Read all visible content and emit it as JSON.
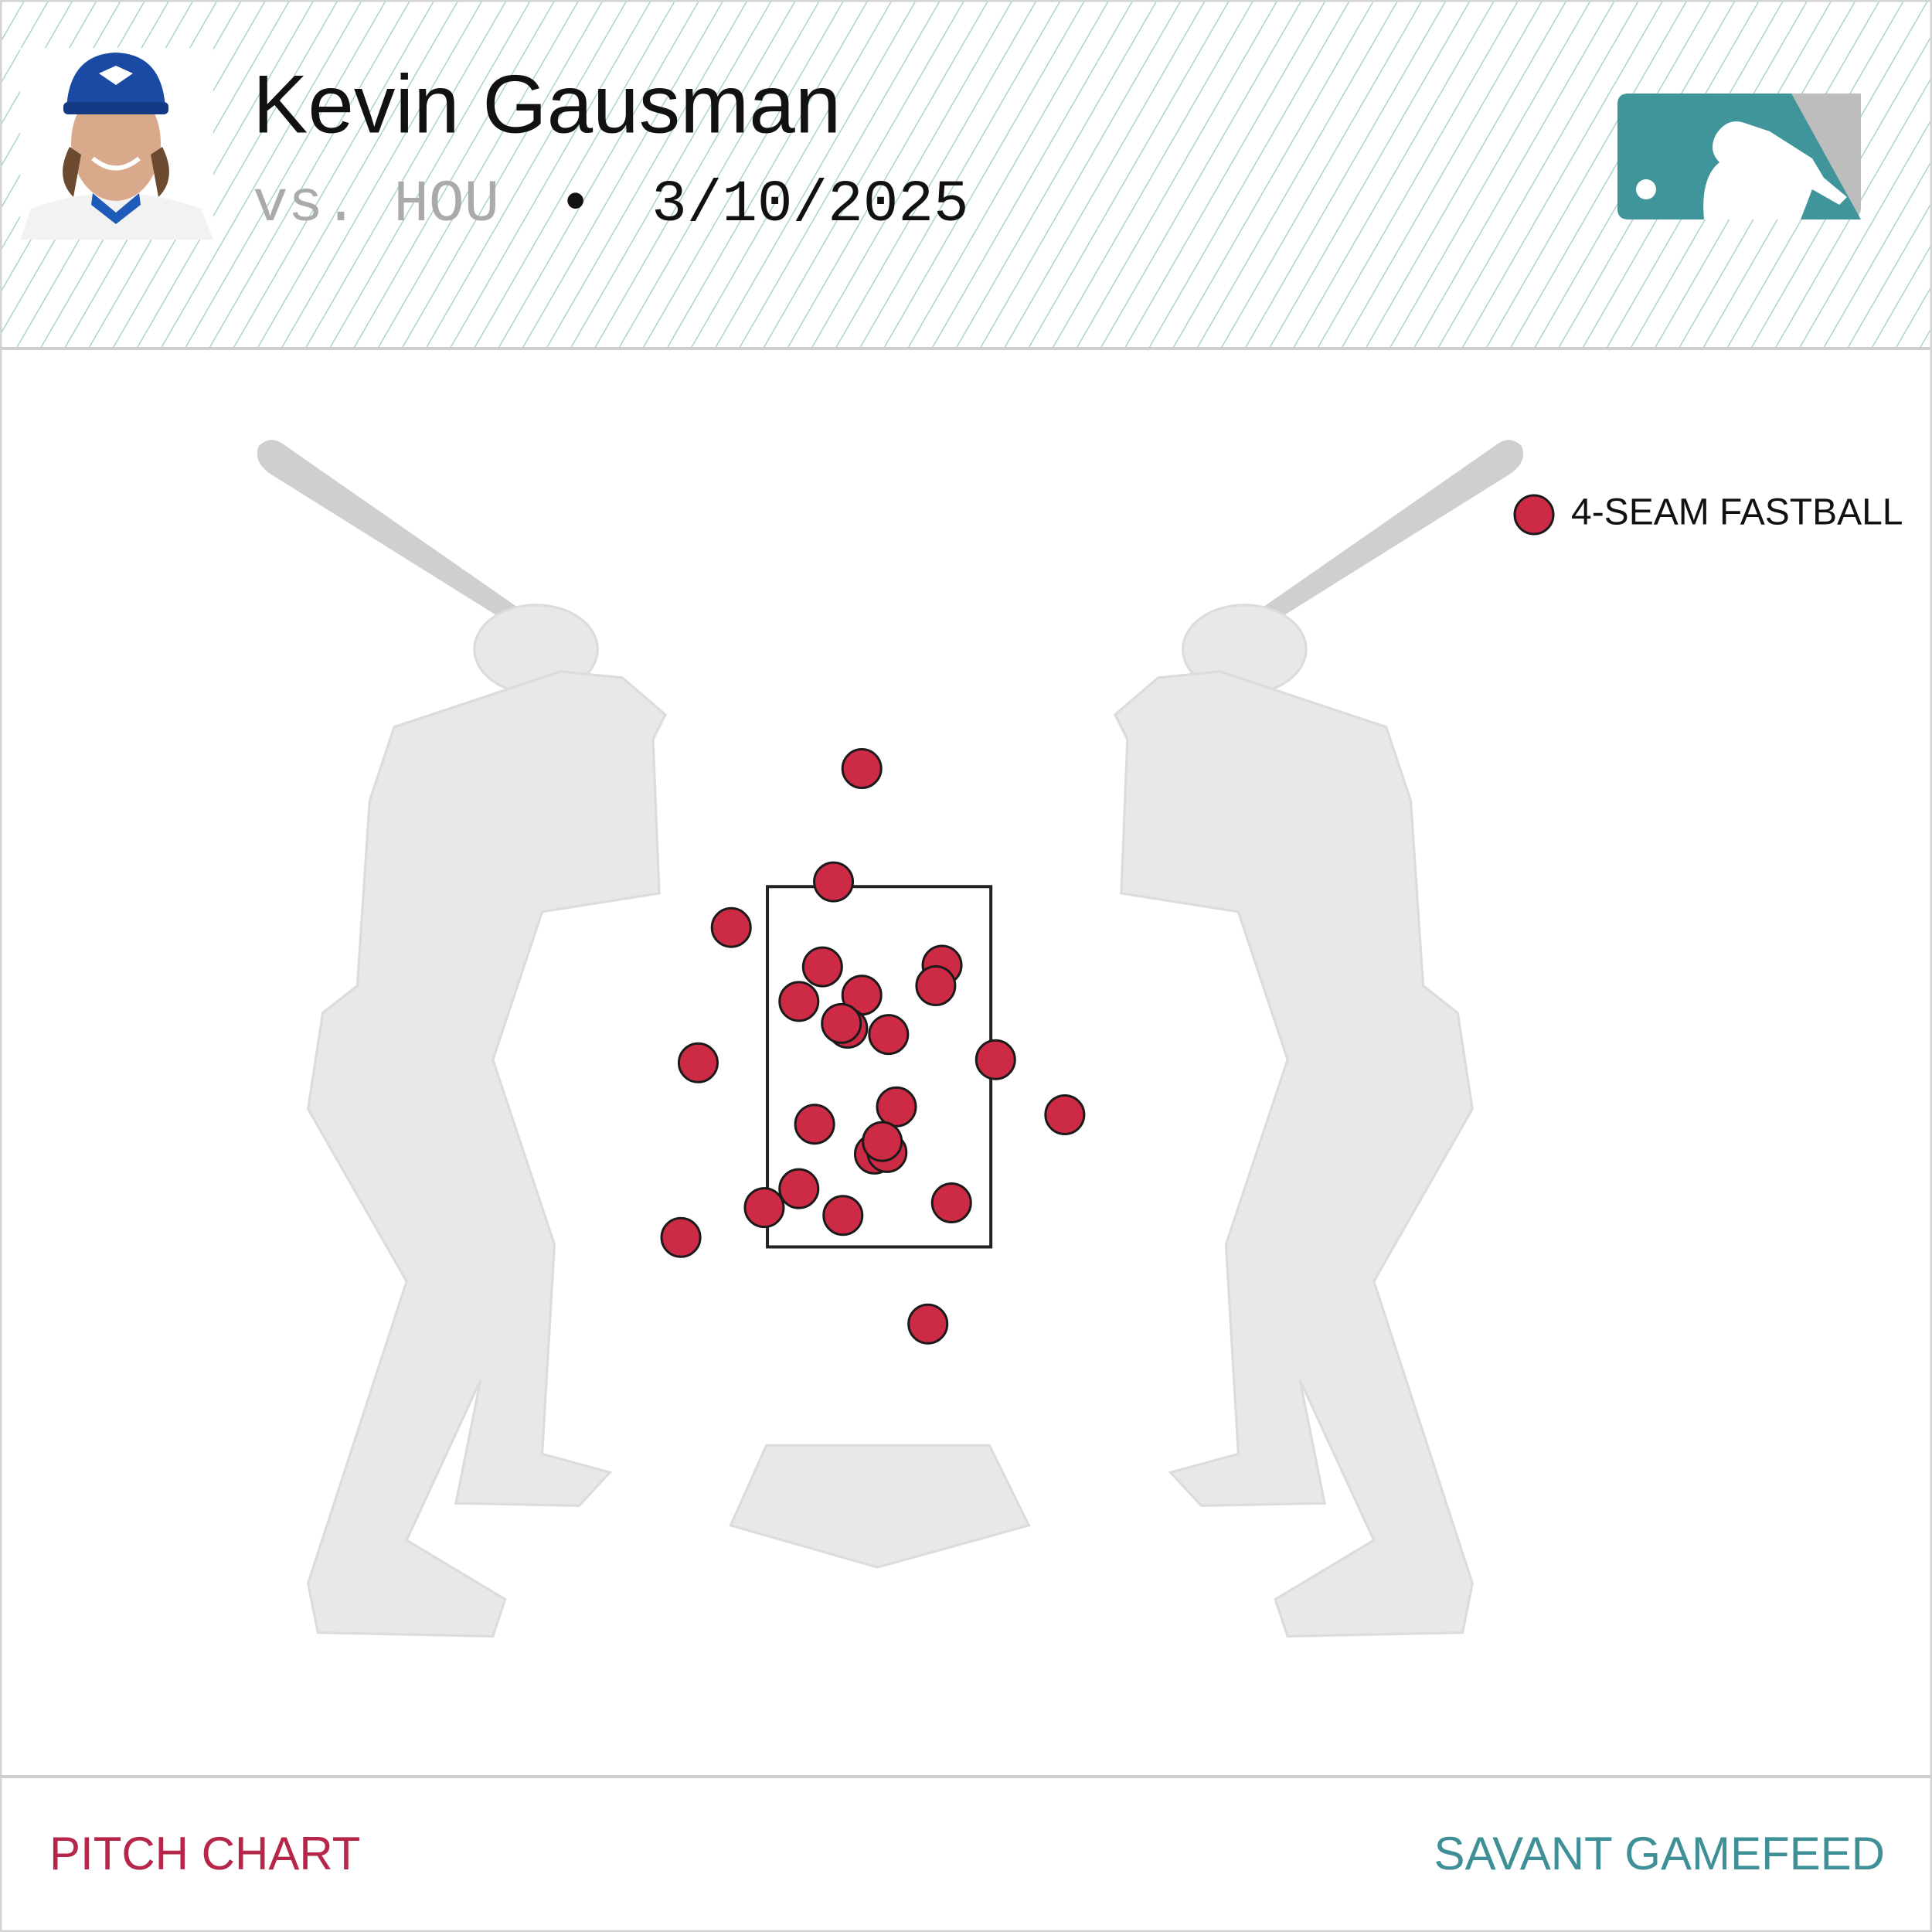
{
  "chart_data": {
    "type": "scatter",
    "title": "Kevin Gausman",
    "opponent": "vs. HOU",
    "separator": "•",
    "date": "3/10/2025",
    "series": [
      {
        "name": "4-SEAM FASTBALL",
        "color": "#cc2a45",
        "x": [
          -0.11,
          -0.29,
          -0.94,
          -0.36,
          0.4,
          0.36,
          -0.11,
          -0.51,
          -0.2,
          -0.24,
          0.06,
          -1.15,
          0.74,
          1.18,
          0.11,
          -0.41,
          -0.03,
          0.05,
          0.02,
          -0.51,
          -0.73,
          -0.23,
          0.46,
          -1.26,
          0.31
        ],
        "y": [
          4.54,
          3.82,
          3.53,
          3.28,
          3.29,
          3.16,
          3.1,
          3.06,
          2.89,
          2.92,
          2.85,
          2.67,
          2.69,
          2.34,
          2.39,
          2.28,
          2.09,
          2.1,
          2.17,
          1.87,
          1.75,
          1.7,
          1.78,
          1.56,
          1.01
        ]
      }
    ],
    "xlim": [
      -2.5,
      2.5
    ],
    "ylim": [
      -0.5,
      5.0
    ],
    "strike_zone": {
      "left": -0.71,
      "right": 0.71,
      "bottom": 1.5,
      "top": 3.79
    }
  },
  "footer": {
    "left": "PITCH CHART",
    "right": "SAVANT GAMEFEED"
  }
}
